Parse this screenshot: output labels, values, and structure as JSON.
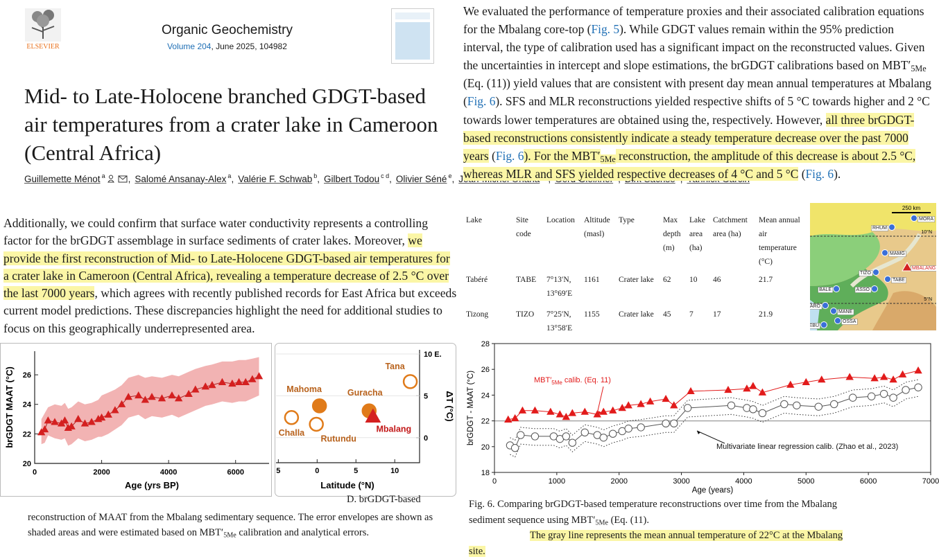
{
  "header": {
    "publisher": "ELSEVIER",
    "journal": "Organic Geochemistry",
    "volume": "Volume 204",
    "issue_info": ", June 2025, 104982"
  },
  "article": {
    "title": "Mid- to Late-Holocene branched GDGT-based air temperatures from a crater lake in Cameroon (Central Africa)",
    "separator": ",",
    "authors": [
      {
        "name": "Guillemette Ménot",
        "affiliation": "a"
      },
      {
        "name": "Salomé Ansanay-Alex",
        "affiliation": "a"
      },
      {
        "name": "Valérie F. Schwab",
        "affiliation": "b"
      },
      {
        "name": "Gilbert Todou",
        "affiliation": "c d"
      },
      {
        "name": "Olivier Séné",
        "affiliation": "e"
      },
      {
        "name": "Jean-Michel Onana",
        "affiliation": "f g"
      },
      {
        "name": "Gerd Gleixner",
        "affiliation": "b"
      },
      {
        "name": "Dirk Sachse",
        "affiliation": "h"
      },
      {
        "name": "Yannick Garcin",
        "affiliation": "i"
      }
    ]
  },
  "left_text": {
    "runs": [
      "Additionally, we could confirm that surface water conductivity represents a controlling factor for the brGDGT assemblage in surface sediments of crater lakes. Moreover, ",
      "we provide the first reconstruction of Mid- to Late-Holocene GDGT-based air temperatures for a crater lake in Cameroon (Central Africa), revealing a temperature decrease of 2.5 °C over the last 7000 years",
      ", which agrees with recently published records for East Africa but exceeds current model predictions. These discrepancies highlight the need for additional studies to focus on this geographically underrepresented area."
    ]
  },
  "left_caption": {
    "head": "D. brGDGT-based",
    "runs": [
      "reconstruction of MAAT from the Mbalang sedimentary sequence. The error envelopes are shown as shaded areas and were estimated based on MBT′",
      "5Me",
      " calibration and analytical errors."
    ]
  },
  "right_text": {
    "runs": [
      "We evaluated the performance of temperature proxies and their associated calibration equations for the Mbalang core-top (",
      "Fig. 5",
      "). While GDGT values remain within the 95% prediction interval, the type of calibration used has a significant impact on the reconstructed values. Given the uncertainties in intercept and slope estimations, the brGDGT calibrations based on MBT′",
      "5Me",
      " (Eq. (11)) yield values that are consistent with present day mean annual temperatures at Mbalang (",
      "Fig. 6",
      "). SFS and MLR reconstructions yielded respective shifts of 5 °C towards higher and 2 °C towards lower temperatures are obtained using the, respectively. However, ",
      "all three brGDGT-based reconstructions consistently indicate a steady temperature decrease over the past 7000 years",
      " (",
      "Fig. 6",
      "). For the MBT′",
      "5Me",
      " reconstruction, the amplitude of this decrease is about 2.5 °C, whereas MLR and SFS yielded respective decreases of 4 °C and 5 °C",
      " (",
      "Fig. 6",
      ")."
    ]
  },
  "table": {
    "header": [
      "Lake",
      "Site code",
      "Location",
      "Altitude (masl)",
      "Type",
      "Max depth (m)",
      "Lake area (ha)",
      "Catchment area (ha)",
      "Mean annual air temperature (°C)"
    ],
    "rows": [
      [
        "Tabéré",
        "TABE",
        "7°13′N, 13°69′E",
        "1161",
        "Crater lake",
        "62",
        "10",
        "46",
        "21.7"
      ],
      [
        "Tizong",
        "TIZO",
        "7°25′N, 13°58′E",
        "1155",
        "Crater lake",
        "45",
        "7",
        "17",
        "21.9"
      ]
    ]
  },
  "map": {
    "scale": "250 km",
    "latitudes": [
      "10°N",
      "5°N"
    ],
    "sites": [
      "MORA",
      "RHUM",
      "MAMG",
      "MBALANG",
      "TIZO",
      "TABE",
      "ASSO",
      "BALE",
      "BARO",
      "MANE",
      "OSSA",
      "DEBU"
    ]
  },
  "chart_data": [
    {
      "type": "line",
      "y_label": "brGDGT MAAT (°C)",
      "x_label": "Age (yrs BP)",
      "xlim": [
        0,
        7000
      ],
      "ylim": [
        20,
        27.6
      ],
      "xticks": [
        0,
        2000,
        4000,
        6000
      ],
      "yticks": [
        20,
        22,
        24,
        26
      ],
      "color": "#d42020",
      "envelope_color": "#f2b3b3",
      "x": [
        200,
        300,
        400,
        600,
        800,
        900,
        1000,
        1100,
        1300,
        1500,
        1700,
        1900,
        2000,
        2200,
        2400,
        2600,
        2800,
        3100,
        3300,
        3500,
        3800,
        4100,
        4300,
        4600,
        4800,
        5100,
        5300,
        5600,
        5900,
        6100,
        6300,
        6500,
        6700
      ],
      "values": [
        22.1,
        22.3,
        22.9,
        22.8,
        22.7,
        22.9,
        22.4,
        22.5,
        23.0,
        22.7,
        22.8,
        23.0,
        23.1,
        23.3,
        23.6,
        24.0,
        24.5,
        24.6,
        24.3,
        24.5,
        24.4,
        24.6,
        24.4,
        24.7,
        25.0,
        25.2,
        25.3,
        25.5,
        25.4,
        25.5,
        25.5,
        25.7,
        25.9
      ],
      "upper": [
        23.0,
        23.4,
        23.8,
        24.0,
        23.9,
        24.1,
        23.7,
        23.8,
        24.2,
        24.0,
        24.1,
        24.3,
        24.6,
        24.8,
        25.0,
        25.3,
        25.8,
        26.0,
        25.8,
        25.9,
        25.8,
        26.0,
        25.9,
        26.2,
        26.4,
        26.6,
        26.7,
        26.9,
        26.9,
        27.0,
        27.0,
        27.1,
        27.2
      ],
      "lower": [
        21.3,
        21.4,
        21.9,
        21.7,
        21.6,
        21.7,
        21.2,
        21.3,
        21.7,
        21.5,
        21.6,
        21.8,
        21.8,
        22.0,
        22.3,
        22.6,
        23.1,
        23.3,
        23.0,
        23.2,
        23.1,
        23.3,
        23.1,
        23.4,
        23.6,
        23.9,
        24.0,
        24.2,
        24.1,
        24.2,
        24.2,
        24.4,
        24.6
      ]
    },
    {
      "type": "scatter",
      "x_label": "Latitude (°N)",
      "y2_label": "ΔT (°C)",
      "xlim": [
        -5.3,
        13.2
      ],
      "y2lim": [
        -3,
        10.5
      ],
      "xticks": [
        {
          "value": -5,
          "label": "5"
        },
        0,
        5,
        10
      ],
      "y2ticks": [
        0,
        5,
        {
          "value": 10,
          "label": "10 E."
        }
      ],
      "points": [
        {
          "name": "Challa",
          "x": -3.3,
          "y": 2.4,
          "marker": "hollow",
          "color": "#e07b1a"
        },
        {
          "name": "Mahoma",
          "x": 0.3,
          "y": 3.8,
          "marker": "filled",
          "color": "#e07b1a"
        },
        {
          "name": "Rutundu",
          "x": -0.1,
          "y": 1.6,
          "marker": "hollow",
          "color": "#e07b1a"
        },
        {
          "name": "Guracha",
          "x": 6.7,
          "y": 3.2,
          "marker": "filled",
          "color": "#e07b1a"
        },
        {
          "name": "Mbalang",
          "x": 7.2,
          "y": 2.5,
          "marker": "triangle",
          "color": "#d42020"
        },
        {
          "name": "Tana",
          "x": 12,
          "y": 6.7,
          "marker": "hollow",
          "color": "#e07b1a"
        }
      ]
    },
    {
      "type": "line",
      "y_label": "brGDGT - MAAT (°C)",
      "x_label": "Age (years)",
      "xlim": [
        0,
        7000
      ],
      "ylim": [
        18,
        28
      ],
      "xticks": [
        0,
        1000,
        2000,
        3000,
        4000,
        5000,
        6000,
        7000
      ],
      "yticks": [
        18,
        20,
        22,
        24,
        26,
        28
      ],
      "hline": 22,
      "series": [
        {
          "name": [
            "MBT′",
            "5Me",
            " calib. (Eq. 11)"
          ],
          "color": "#e21b1b",
          "marker": "triangle",
          "x": [
            220,
            330,
            450,
            650,
            900,
            1050,
            1150,
            1250,
            1450,
            1650,
            1750,
            1900,
            2050,
            2150,
            2350,
            2500,
            2750,
            2880,
            3150,
            3750,
            4050,
            4150,
            4300,
            4750,
            5000,
            5250,
            5700,
            6100,
            6250,
            6400,
            6550,
            6800
          ],
          "values": [
            22.1,
            22.2,
            22.8,
            22.8,
            22.7,
            22.5,
            22.3,
            22.6,
            22.7,
            22.5,
            22.7,
            22.8,
            23.0,
            23.2,
            23.3,
            23.5,
            23.7,
            23.2,
            24.3,
            24.4,
            24.5,
            24.7,
            24.2,
            24.8,
            25.0,
            25.2,
            25.4,
            25.3,
            25.4,
            25.2,
            25.6,
            25.9
          ]
        },
        {
          "name": [
            "Multivariate linear regression calib. (Zhao et al., 2023)"
          ],
          "color": "#555555",
          "marker": "circle",
          "x": [
            250,
            330,
            420,
            650,
            950,
            1050,
            1150,
            1250,
            1450,
            1650,
            1750,
            1900,
            2050,
            2150,
            2350,
            2750,
            2880,
            3100,
            3800,
            4050,
            4150,
            4300,
            4650,
            4850,
            5200,
            5450,
            5750,
            6050,
            6250,
            6400,
            6600,
            6800
          ],
          "values": [
            20.1,
            19.9,
            20.9,
            20.8,
            20.8,
            20.6,
            20.8,
            20.3,
            21.1,
            20.9,
            20.7,
            21.0,
            21.2,
            21.4,
            21.5,
            21.8,
            21.8,
            23.0,
            23.2,
            23.0,
            22.9,
            22.6,
            23.3,
            23.2,
            23.1,
            23.3,
            23.8,
            23.9,
            24.1,
            23.8,
            24.4,
            24.6
          ],
          "upper": [
            20.7,
            20.5,
            21.5,
            21.4,
            21.4,
            21.2,
            21.4,
            20.9,
            21.7,
            21.5,
            21.3,
            21.6,
            21.8,
            22.0,
            22.1,
            22.4,
            22.4,
            23.6,
            23.8,
            23.6,
            23.5,
            23.2,
            23.9,
            23.8,
            23.7,
            23.9,
            24.4,
            24.5,
            24.7,
            24.4,
            25.0,
            25.2
          ],
          "lower": [
            19.4,
            19.2,
            20.2,
            20.1,
            20.1,
            19.9,
            20.1,
            19.6,
            20.4,
            20.2,
            20.0,
            20.3,
            20.5,
            20.7,
            20.8,
            21.1,
            21.1,
            22.3,
            22.5,
            22.3,
            22.2,
            21.9,
            22.6,
            22.5,
            22.4,
            22.6,
            23.1,
            23.2,
            23.4,
            23.1,
            23.7,
            23.9
          ]
        }
      ]
    }
  ],
  "right_caption": {
    "runs": [
      "Fig. 6. Comparing brGDGT-based temperature reconstructions over time from the Mbalang sediment sequence using MBT′",
      "5Me",
      " (Eq. (11).",
      "The gray line represents the mean annual temperature of 22°C at the Mbalang site."
    ]
  }
}
